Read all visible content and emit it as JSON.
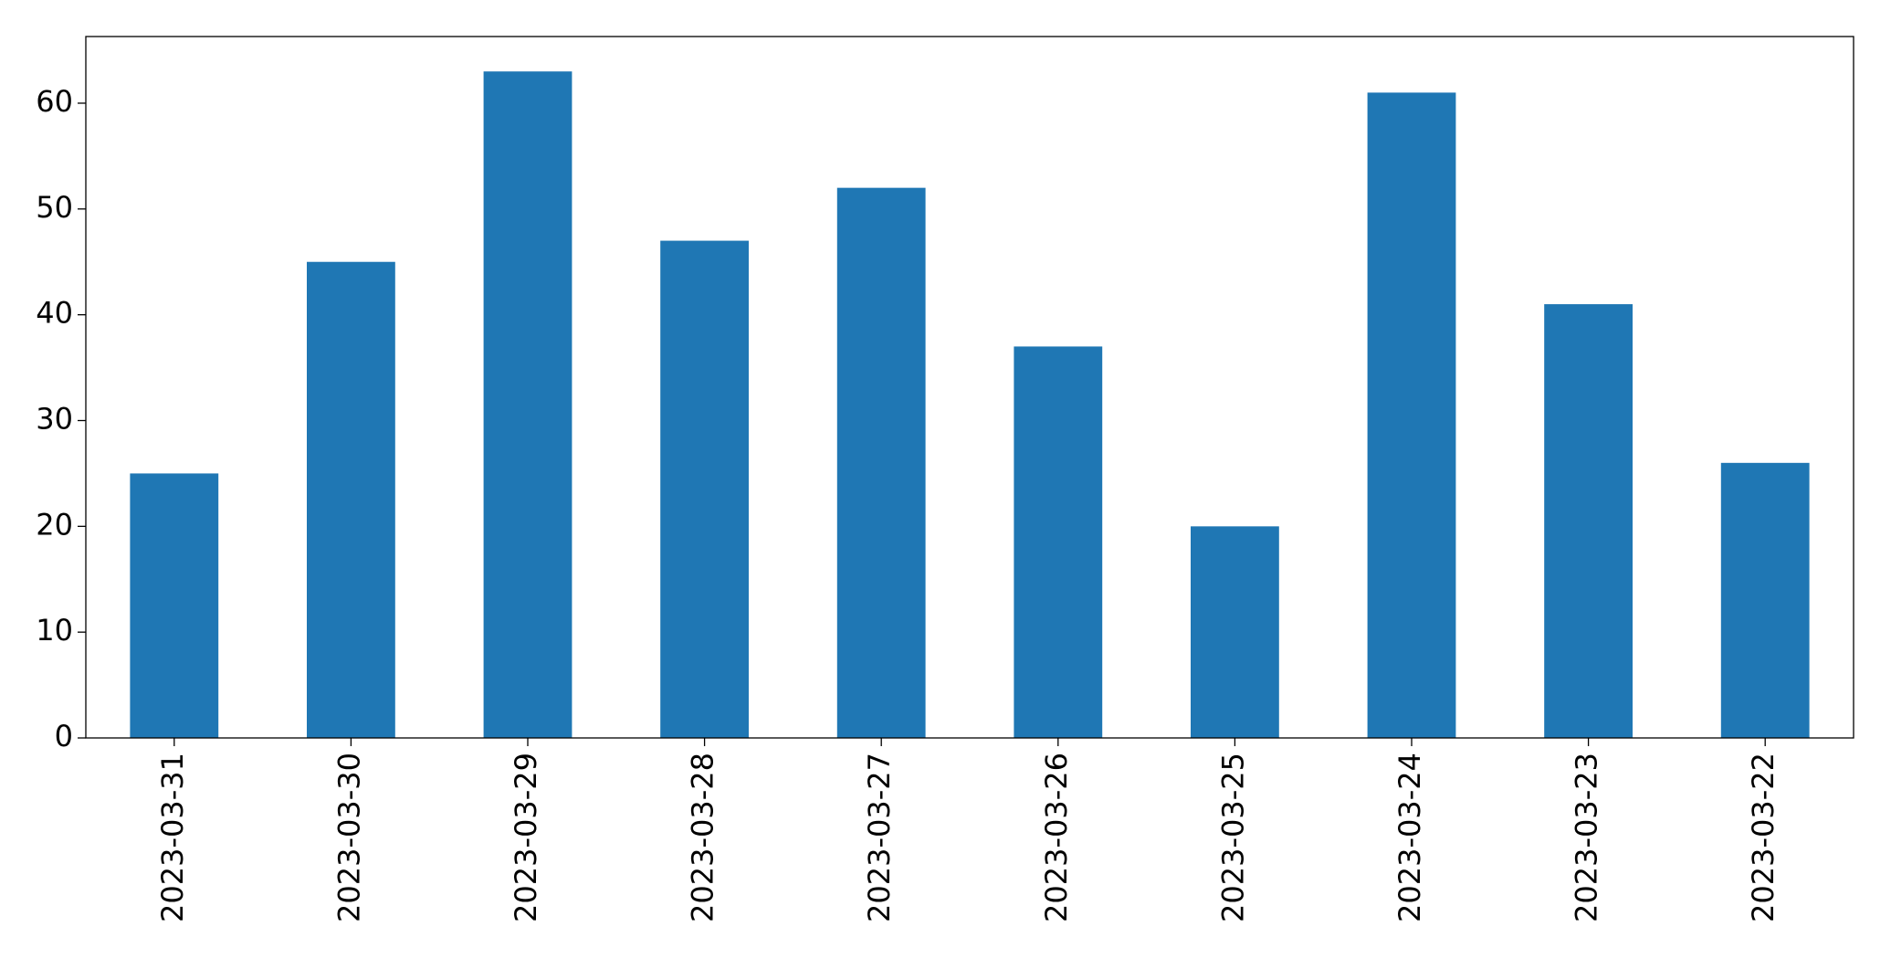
{
  "chart_data": {
    "type": "bar",
    "categories": [
      "2023-03-31",
      "2023-03-30",
      "2023-03-29",
      "2023-03-28",
      "2023-03-27",
      "2023-03-26",
      "2023-03-25",
      "2023-03-24",
      "2023-03-23",
      "2023-03-22"
    ],
    "values": [
      25,
      45,
      63,
      47,
      52,
      37,
      20,
      61,
      41,
      26
    ],
    "color": "#1f77b4",
    "ylim": [
      0,
      66.3
    ],
    "yticks": [
      0,
      10,
      20,
      30,
      40,
      50,
      60
    ],
    "grid": false
  }
}
